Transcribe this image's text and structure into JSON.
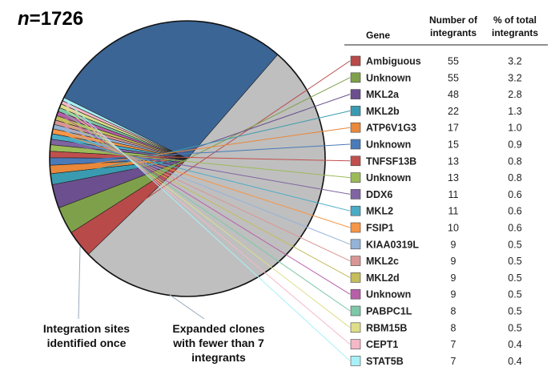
{
  "chart_data": {
    "type": "pie",
    "sample_label_var": "n",
    "sample_label_val": "=1726",
    "total": 1726,
    "slices": [
      {
        "label": "Integration sites identified once",
        "value": 884,
        "color": "#bfbfbf"
      },
      {
        "label": "Expanded clones with fewer than 7 integrants",
        "value": 500,
        "color": "#3b6594"
      }
    ],
    "annotations": [
      {
        "text_lines": [
          "Integration sites",
          "identified once"
        ],
        "slice": 0
      },
      {
        "text_lines": [
          "Expanded clones",
          "with fewer than 7",
          "integrants"
        ],
        "slice": 1
      }
    ],
    "table": {
      "headers": {
        "gene": "Gene",
        "count_line1": "Number of",
        "count_line2": "integrants",
        "pct_line1": "% of total",
        "pct_line2": "integrants"
      },
      "rows": [
        {
          "gene": "Ambiguous",
          "count": 55,
          "pct": "3.2",
          "color": "#b84a4a"
        },
        {
          "gene": "Unknown",
          "count": 55,
          "pct": "3.2",
          "color": "#7fa04a"
        },
        {
          "gene": "MKL2a",
          "count": 48,
          "pct": "2.8",
          "color": "#6b4f8e"
        },
        {
          "gene": "MKL2b",
          "count": 22,
          "pct": "1.3",
          "color": "#3a9bb0"
        },
        {
          "gene": "ATP6V1G3",
          "count": 17,
          "pct": "1.0",
          "color": "#e8883a"
        },
        {
          "gene": "Unknown",
          "count": 15,
          "pct": "0.9",
          "color": "#4a7ab8"
        },
        {
          "gene": "TNFSF13B",
          "count": 13,
          "pct": "0.8",
          "color": "#c0504d"
        },
        {
          "gene": "Unknown",
          "count": 13,
          "pct": "0.8",
          "color": "#9bbb59"
        },
        {
          "gene": "DDX6",
          "count": 11,
          "pct": "0.6",
          "color": "#8064a2"
        },
        {
          "gene": "MKL2",
          "count": 11,
          "pct": "0.6",
          "color": "#4bacc6"
        },
        {
          "gene": "FSIP1",
          "count": 10,
          "pct": "0.6",
          "color": "#f79646"
        },
        {
          "gene": "KIAA0319L",
          "count": 9,
          "pct": "0.5",
          "color": "#95b3d7"
        },
        {
          "gene": "MKL2c",
          "count": 9,
          "pct": "0.5",
          "color": "#d99694"
        },
        {
          "gene": "MKL2d",
          "count": 9,
          "pct": "0.5",
          "color": "#c4bd5a"
        },
        {
          "gene": "Unknown",
          "count": 9,
          "pct": "0.5",
          "color": "#b65fa8"
        },
        {
          "gene": "PABPC1L",
          "count": 8,
          "pct": "0.5",
          "color": "#7ec8a8"
        },
        {
          "gene": "RBM15B",
          "count": 8,
          "pct": "0.5",
          "color": "#dede8a"
        },
        {
          "gene": "CEPT1",
          "count": 7,
          "pct": "0.4",
          "color": "#f4b8c8"
        },
        {
          "gene": "STAT5B",
          "count": 7,
          "pct": "0.4",
          "color": "#a8f0f8"
        }
      ]
    }
  }
}
